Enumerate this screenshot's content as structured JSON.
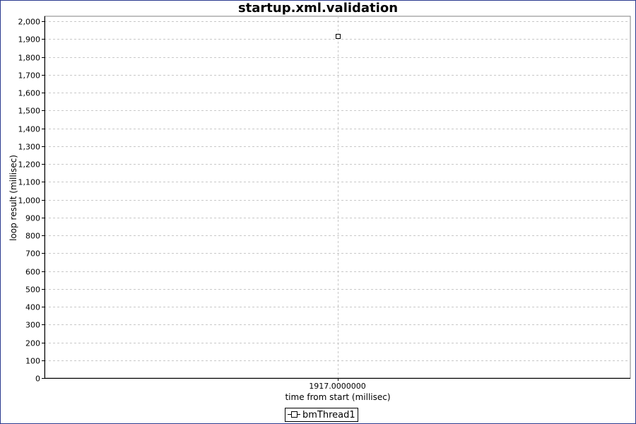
{
  "chart_data": {
    "type": "scatter",
    "title": "startup.xml.validation",
    "xlabel": "time from start (millisec)",
    "ylabel": "loop result (millisec)",
    "x_tick_labels": [
      "1917.0000000"
    ],
    "y_ticks": [
      0,
      100,
      200,
      300,
      400,
      500,
      600,
      700,
      800,
      900,
      1000,
      1100,
      1200,
      1300,
      1400,
      1500,
      1600,
      1700,
      1800,
      1900,
      2000
    ],
    "y_tick_labels": [
      "0",
      "100",
      "200",
      "300",
      "400",
      "500",
      "600",
      "700",
      "800",
      "900",
      "1,000",
      "1,100",
      "1,200",
      "1,300",
      "1,400",
      "1,500",
      "1,600",
      "1,700",
      "1,800",
      "1,900",
      "2,000"
    ],
    "ylim": [
      0,
      2000
    ],
    "grid": true,
    "legend_position": "bottom-center",
    "series": [
      {
        "name": "bmThread1",
        "points": [
          {
            "x": 1917.0,
            "y": 1917
          }
        ]
      }
    ],
    "colors": {
      "frame": "#2b3a8f",
      "grid": "#c8c8c8",
      "axis": "#000000",
      "plot_bg": "#ffffff"
    }
  }
}
